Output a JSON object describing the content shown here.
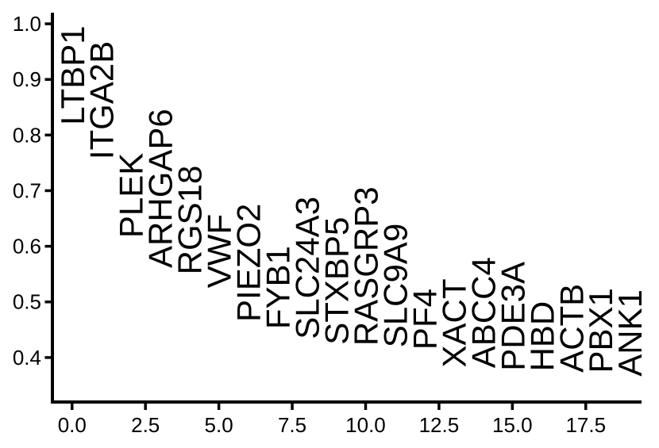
{
  "chart_data": {
    "type": "scatter",
    "title": "",
    "subtitle": "",
    "xlabel": "",
    "ylabel": "",
    "marker": "rotated-text-label",
    "label_rotation_deg": 90,
    "label_anchor": "text-bottom-at-data-point",
    "grid": false,
    "legend_position": "none",
    "xlim": [
      -0.67,
      19.4
    ],
    "ylim": [
      0.32,
      1.02
    ],
    "x_ticks": [
      0,
      2.5,
      5,
      7.5,
      10,
      12.5,
      15,
      17.5
    ],
    "x_tick_labels": [
      "0.0",
      "2.5",
      "5.0",
      "7.5",
      "10.0",
      "12.5",
      "15.0",
      "17.5"
    ],
    "y_ticks": [
      0.4,
      0.5,
      0.6,
      0.7,
      0.8,
      0.9,
      1.0
    ],
    "y_tick_labels": [
      "0.4",
      "0.5",
      "0.6",
      "0.7",
      "0.8",
      "0.9",
      "1.0"
    ],
    "points": [
      {
        "label": "LTBP1",
        "x": 0,
        "y": 0.818
      },
      {
        "label": "ITGA2B",
        "x": 1,
        "y": 0.756
      },
      {
        "label": "PLEK",
        "x": 2,
        "y": 0.615
      },
      {
        "label": "ARHGAP6",
        "x": 3,
        "y": 0.561
      },
      {
        "label": "RGS18",
        "x": 4,
        "y": 0.549
      },
      {
        "label": "VWF",
        "x": 5,
        "y": 0.525
      },
      {
        "label": "PIEZO2",
        "x": 6,
        "y": 0.464
      },
      {
        "label": "FYB1",
        "x": 7,
        "y": 0.451
      },
      {
        "label": "SLC24A3",
        "x": 8,
        "y": 0.433
      },
      {
        "label": "STXBP5",
        "x": 9,
        "y": 0.423
      },
      {
        "label": "RASGRP3",
        "x": 10,
        "y": 0.421
      },
      {
        "label": "SLC9A9",
        "x": 11,
        "y": 0.418
      },
      {
        "label": "PF4",
        "x": 12,
        "y": 0.414
      },
      {
        "label": "XACT",
        "x": 13,
        "y": 0.382
      },
      {
        "label": "ABCC4",
        "x": 14,
        "y": 0.381
      },
      {
        "label": "PDE3A",
        "x": 15,
        "y": 0.376
      },
      {
        "label": "HBD",
        "x": 16,
        "y": 0.375
      },
      {
        "label": "ACTB",
        "x": 17,
        "y": 0.373
      },
      {
        "label": "PBX1",
        "x": 18,
        "y": 0.372
      },
      {
        "label": "ANK1",
        "x": 19,
        "y": 0.366
      }
    ],
    "colors": {
      "text": "#000000",
      "axis": "#000000",
      "background": "#ffffff"
    }
  }
}
